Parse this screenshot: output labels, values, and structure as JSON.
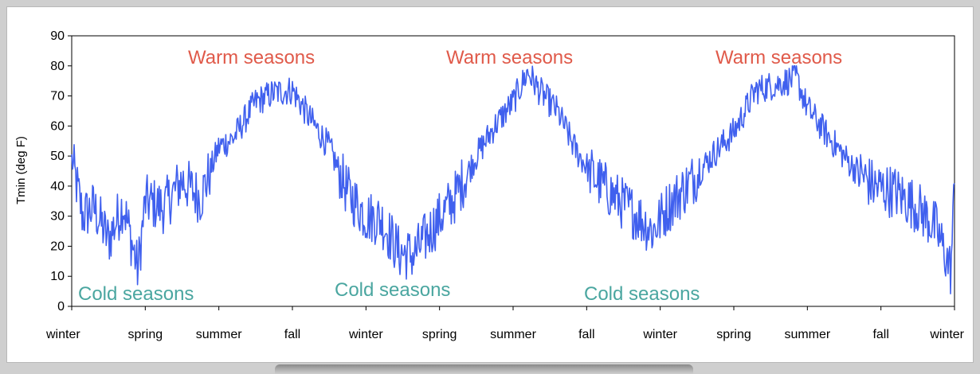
{
  "chart_data": {
    "type": "line",
    "title": "",
    "xlabel": "",
    "ylabel": "Tmin (deg F)",
    "ylim": [
      0,
      90
    ],
    "yticks": [
      0,
      10,
      20,
      30,
      40,
      50,
      60,
      70,
      80,
      90
    ],
    "xtick_labels": [
      "winter",
      "spring",
      "summer",
      "fall",
      "winter",
      "spring",
      "summer",
      "fall",
      "winter",
      "spring",
      "summer",
      "fall",
      "winter"
    ],
    "annotations": {
      "warm": [
        "Warm seasons",
        "Warm seasons",
        "Warm seasons"
      ],
      "cold": [
        "Cold seasons",
        "Cold seasons",
        "Cold seasons"
      ]
    },
    "line_color": "#4060ee",
    "grid": false,
    "series": [
      {
        "approximate_daily_Tmin_pattern": [
          [
            0.0,
            49
          ],
          [
            0.15,
            30
          ],
          [
            0.3,
            33
          ],
          [
            0.5,
            22
          ],
          [
            0.7,
            34
          ],
          [
            0.9,
            12
          ],
          [
            1.0,
            35
          ],
          [
            1.25,
            33
          ],
          [
            1.5,
            42
          ],
          [
            1.75,
            36
          ],
          [
            2.0,
            53
          ],
          [
            2.2,
            56
          ],
          [
            2.5,
            68
          ],
          [
            2.75,
            71
          ],
          [
            3.0,
            72
          ],
          [
            3.25,
            62
          ],
          [
            3.5,
            53
          ],
          [
            3.75,
            38
          ],
          [
            4.0,
            30
          ],
          [
            4.2,
            29
          ],
          [
            4.45,
            18
          ],
          [
            4.65,
            17
          ],
          [
            4.9,
            26
          ],
          [
            5.2,
            36
          ],
          [
            5.5,
            50
          ],
          [
            5.75,
            60
          ],
          [
            6.0,
            68
          ],
          [
            6.2,
            78
          ],
          [
            6.35,
            72
          ],
          [
            6.6,
            65
          ],
          [
            6.85,
            52
          ],
          [
            7.1,
            43
          ],
          [
            7.4,
            36
          ],
          [
            7.7,
            30
          ],
          [
            7.9,
            25
          ],
          [
            8.1,
            33
          ],
          [
            8.4,
            41
          ],
          [
            8.7,
            50
          ],
          [
            9.0,
            58
          ],
          [
            9.3,
            72
          ],
          [
            9.6,
            74
          ],
          [
            9.85,
            76
          ],
          [
            10.0,
            66
          ],
          [
            10.3,
            56
          ],
          [
            10.6,
            47
          ],
          [
            10.9,
            40
          ],
          [
            11.2,
            38
          ],
          [
            11.5,
            33
          ],
          [
            11.75,
            26
          ],
          [
            11.95,
            12
          ],
          [
            12.0,
            40
          ]
        ]
      }
    ]
  }
}
